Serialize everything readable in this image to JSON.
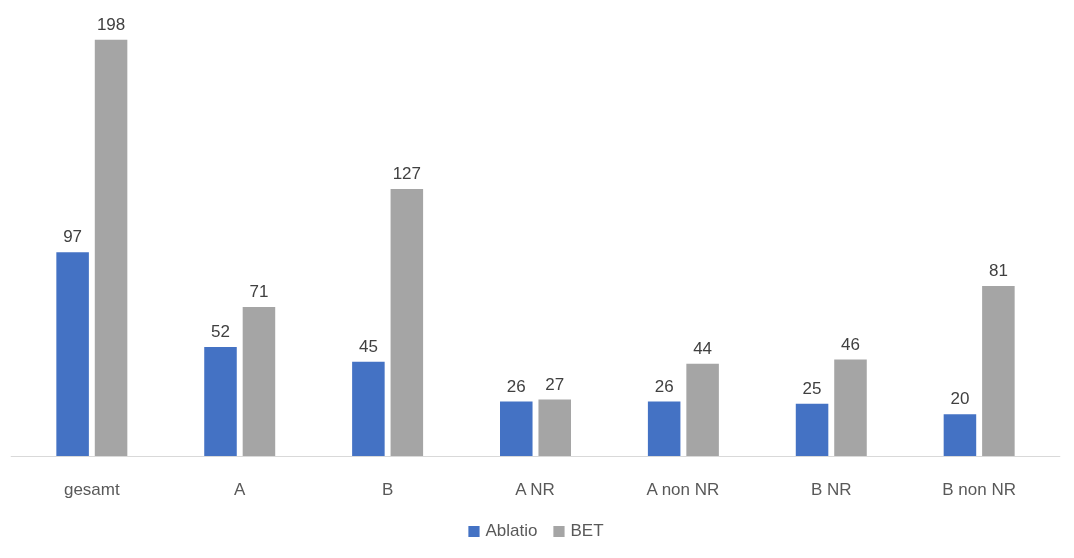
{
  "chart_data": {
    "type": "bar",
    "categories": [
      "gesamt",
      "A",
      "B",
      "A NR",
      "A non NR",
      "B NR",
      "B non NR"
    ],
    "series": [
      {
        "name": "Ablatio",
        "color": "#4472c4",
        "values": [
          97,
          52,
          45,
          26,
          26,
          25,
          20
        ]
      },
      {
        "name": "BET",
        "color": "#a5a5a5",
        "values": [
          198,
          71,
          127,
          27,
          44,
          46,
          81
        ]
      }
    ],
    "data_labels": true,
    "grid": false,
    "legend": "bottom"
  }
}
